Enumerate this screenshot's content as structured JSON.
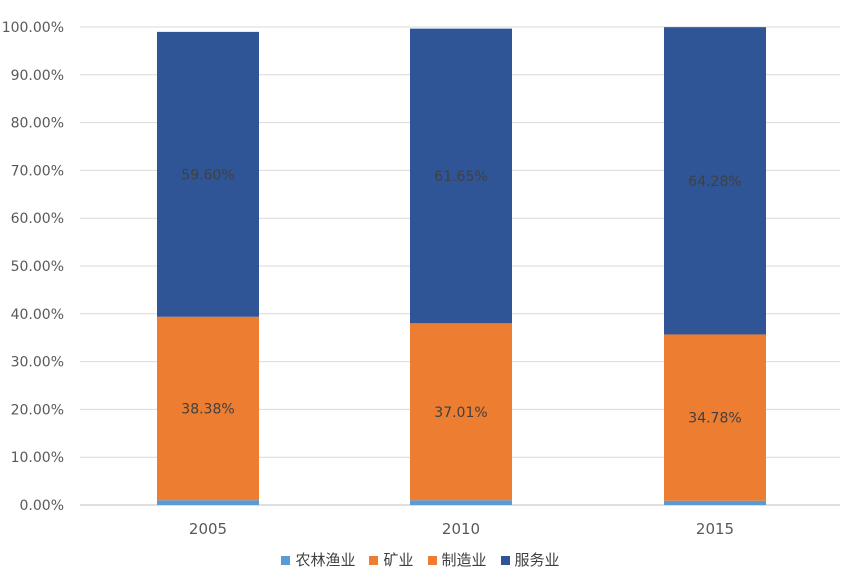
{
  "chart_data": {
    "type": "bar",
    "stacked": true,
    "normalized": true,
    "title": "",
    "xlabel": "",
    "ylabel": "",
    "categories": [
      "2005",
      "2010",
      "2015"
    ],
    "ylim": [
      0,
      100
    ],
    "y_ticks": [
      0,
      10,
      20,
      30,
      40,
      50,
      60,
      70,
      80,
      90,
      100
    ],
    "y_tick_labels": [
      "0.00%",
      "10.00%",
      "20.00%",
      "30.00%",
      "40.00%",
      "50.00%",
      "60.00%",
      "70.00%",
      "80.00%",
      "90.00%",
      "100.00%"
    ],
    "grid": true,
    "legend_position": "bottom",
    "series": [
      {
        "name": "农林渔业",
        "color": "#5B9BD5",
        "values": [
          1.0,
          1.0,
          0.9
        ]
      },
      {
        "name": "矿业",
        "color": "#ED7D31",
        "values": [
          0.0,
          0.0,
          0.0
        ]
      },
      {
        "name": "制造业",
        "color": "#ED7D31",
        "values": [
          38.38,
          37.01,
          34.78
        ],
        "labels": [
          "38.38%",
          "37.01%",
          "34.78%"
        ]
      },
      {
        "name": "服务业",
        "color": "#2F5597",
        "values": [
          59.6,
          61.65,
          64.28
        ],
        "labels": [
          "59.60%",
          "61.65%",
          "64.28%"
        ]
      }
    ]
  }
}
